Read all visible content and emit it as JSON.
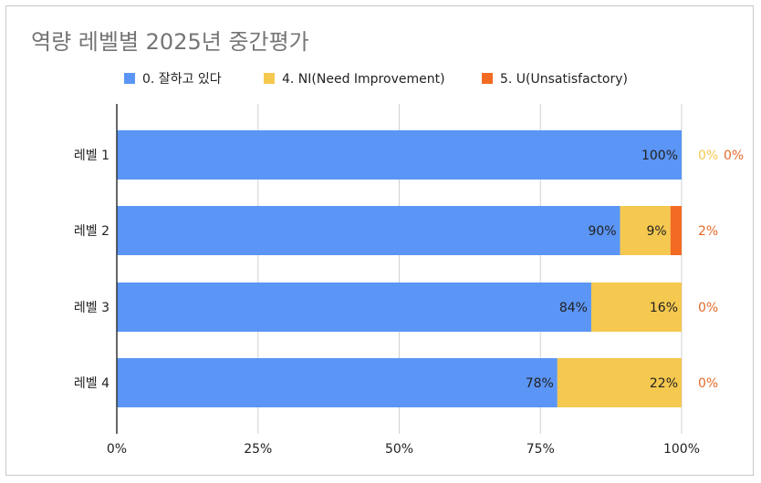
{
  "chart_data": {
    "type": "bar",
    "orientation": "horizontal",
    "stacked": "percent",
    "title": "역량 레벨별 2025년 중간평가",
    "categories": [
      "레벨 1",
      "레벨 2",
      "레벨 3",
      "레벨 4"
    ],
    "series": [
      {
        "name": "0. 잘하고 있다",
        "color": "#5b95f5",
        "values": [
          100,
          90,
          84,
          78
        ],
        "labels": [
          "100%",
          "90%",
          "84%",
          "78%"
        ]
      },
      {
        "name": "4. NI(Need Improvement)",
        "color": "#f5c84f",
        "values": [
          0,
          9,
          16,
          22
        ],
        "labels": [
          "0%",
          "9%",
          "16%",
          "22%"
        ]
      },
      {
        "name": "5. U(Unsatisfactory)",
        "color": "#f36b22",
        "values": [
          0,
          2,
          0,
          0
        ],
        "labels": [
          "0%",
          "2%",
          "0%",
          "0%"
        ]
      }
    ],
    "outside_label_colors": [
      "#f5c84f",
      "#e36a2a"
    ],
    "xlim": [
      0,
      100
    ],
    "x_ticks": [
      "0%",
      "25%",
      "50%",
      "75%",
      "100%"
    ],
    "grid": true,
    "legend_position": "top"
  }
}
